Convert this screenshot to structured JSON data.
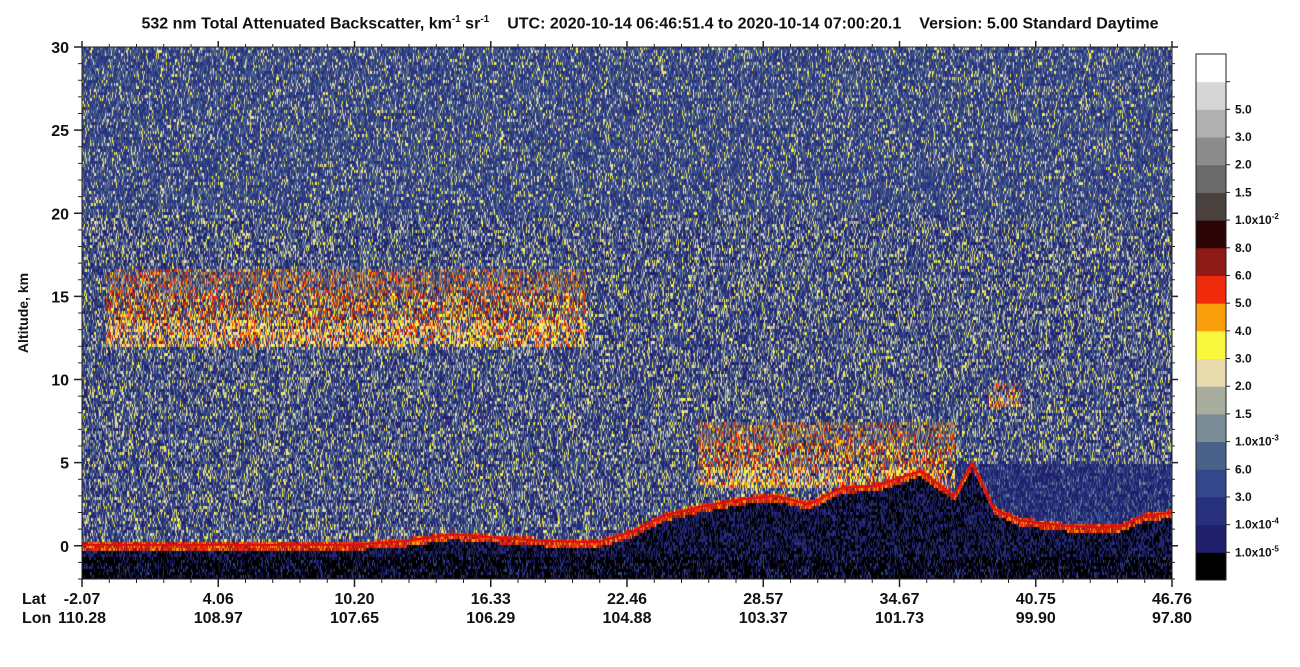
{
  "title": {
    "quantity": "532 nm Total Attenuated Backscatter, km",
    "unit_km_sup": "-1",
    "unit_sr": " sr",
    "unit_sr_sup": "-1",
    "utc_label": "UTC:",
    "start": "2020-10-14 06:46:51.4",
    "to": "to",
    "end": "2020-10-14 07:00:20.1",
    "version": "Version: 5.00",
    "product": "Standard",
    "mode": "Daytime"
  },
  "chart_data": {
    "type": "heatmap",
    "ylabel": "Altitude, km",
    "ylim": [
      -2,
      30
    ],
    "y_ticks": [
      0,
      5,
      10,
      15,
      20,
      25,
      30
    ],
    "x_row_labels": [
      "Lat",
      "Lon"
    ],
    "x_ticks": [
      {
        "lat": "-2.07",
        "lon": "110.28"
      },
      {
        "lat": "4.06",
        "lon": "108.97"
      },
      {
        "lat": "10.20",
        "lon": "107.65"
      },
      {
        "lat": "16.33",
        "lon": "106.29"
      },
      {
        "lat": "22.46",
        "lon": "104.88"
      },
      {
        "lat": "28.57",
        "lon": "103.37"
      },
      {
        "lat": "34.67",
        "lon": "101.73"
      },
      {
        "lat": "40.75",
        "lon": "99.90"
      },
      {
        "lat": "46.76",
        "lon": "97.80"
      }
    ],
    "xlim_lat": [
      -2.07,
      46.76
    ],
    "surface_profile": [
      {
        "lat": -2.07,
        "alt": 0.05
      },
      {
        "lat": 4.0,
        "alt": 0.05
      },
      {
        "lat": 10.0,
        "alt": 0.05
      },
      {
        "lat": 12.5,
        "alt": 0.3
      },
      {
        "lat": 14.5,
        "alt": 0.7
      },
      {
        "lat": 16.3,
        "alt": 0.5
      },
      {
        "lat": 18.5,
        "alt": 0.3
      },
      {
        "lat": 21.0,
        "alt": 0.2
      },
      {
        "lat": 22.5,
        "alt": 0.8
      },
      {
        "lat": 24.0,
        "alt": 1.8
      },
      {
        "lat": 25.5,
        "alt": 2.3
      },
      {
        "lat": 27.5,
        "alt": 2.8
      },
      {
        "lat": 29.0,
        "alt": 3.0
      },
      {
        "lat": 30.5,
        "alt": 2.5
      },
      {
        "lat": 32.0,
        "alt": 3.5
      },
      {
        "lat": 33.5,
        "alt": 3.6
      },
      {
        "lat": 35.5,
        "alt": 4.5
      },
      {
        "lat": 37.0,
        "alt": 3.0
      },
      {
        "lat": 37.8,
        "alt": 5.0
      },
      {
        "lat": 38.8,
        "alt": 2.2
      },
      {
        "lat": 40.0,
        "alt": 1.5
      },
      {
        "lat": 42.0,
        "alt": 1.2
      },
      {
        "lat": 43.5,
        "alt": 1.1
      },
      {
        "lat": 44.5,
        "alt": 1.2
      },
      {
        "lat": 45.5,
        "alt": 1.8
      },
      {
        "lat": 46.76,
        "alt": 2.0
      }
    ],
    "cloud_layers": [
      {
        "lat_start": -1.0,
        "lat_end": 20.5,
        "base_km": 12.0,
        "top_km": 16.8
      },
      {
        "lat_start": 25.5,
        "lat_end": 37.0,
        "base_km": 3.5,
        "top_km": 7.5
      },
      {
        "lat_start": 38.5,
        "lat_end": 40.0,
        "base_km": 8.5,
        "top_km": 9.8
      }
    ],
    "colorbar": [
      {
        "label": "",
        "color": "#000000"
      },
      {
        "label": "1.0x10",
        "sup": "-5",
        "color": "#1f1f6b"
      },
      {
        "label": "1.0x10",
        "sup": "-4",
        "color": "#26307c"
      },
      {
        "label": "3.0",
        "color": "#34478c"
      },
      {
        "label": "6.0",
        "color": "#4a6189"
      },
      {
        "label": "1.0x10",
        "sup": "-3",
        "color": "#7a8c96"
      },
      {
        "label": "1.5",
        "color": "#a9ad9e"
      },
      {
        "label": "2.0",
        "color": "#e8dbae"
      },
      {
        "label": "3.0",
        "color": "#f9f73e"
      },
      {
        "label": "4.0",
        "color": "#fb9e0c"
      },
      {
        "label": "5.0",
        "color": "#f02b0c"
      },
      {
        "label": "6.0",
        "color": "#8e1a16"
      },
      {
        "label": "8.0",
        "color": "#2b0505"
      },
      {
        "label": "1.0x10",
        "sup": "-2",
        "color": "#4b4240"
      },
      {
        "label": "1.5",
        "color": "#6b6b6b"
      },
      {
        "label": "2.0",
        "color": "#8c8c8c"
      },
      {
        "label": "3.0",
        "color": "#b0b0b0"
      },
      {
        "label": "5.0",
        "color": "#d6d6d6"
      },
      {
        "label": "",
        "color": "#ffffff"
      }
    ]
  }
}
